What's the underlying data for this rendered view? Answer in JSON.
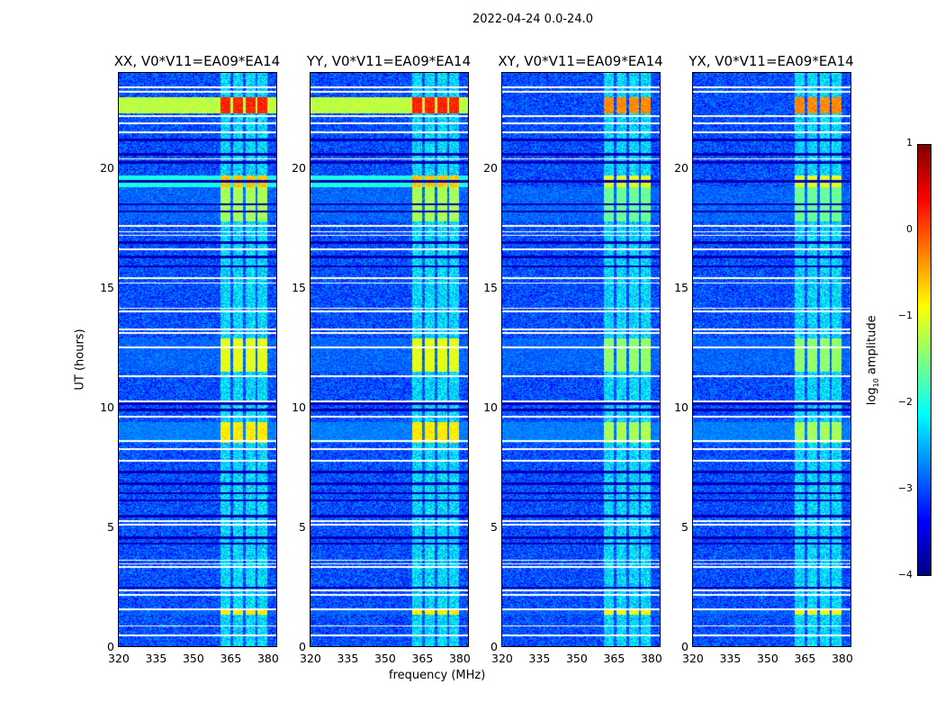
{
  "chart_data": {
    "type": "heatmap",
    "suptitle": "2022-04-24 0.0-24.0",
    "xlabel": "frequency (MHz)",
    "ylabel": "UT (hours)",
    "xlim": [
      320,
      384
    ],
    "ylim": [
      0,
      24
    ],
    "xticks": [
      320,
      335,
      350,
      365,
      380
    ],
    "yticks": [
      0,
      5,
      10,
      15,
      20
    ],
    "panels": [
      {
        "title": "XX, V0*V11=EA09*EA14",
        "pol": "XX"
      },
      {
        "title": "YY, V0*V11=EA09*EA14",
        "pol": "YY"
      },
      {
        "title": "XY, V0*V11=EA09*EA14",
        "pol": "XY"
      },
      {
        "title": "YX, V0*V11=EA09*EA14",
        "pol": "YX"
      }
    ],
    "colorbar": {
      "label_prefix": "log",
      "label_sub": "10",
      "label_suffix": " amplitude",
      "range": [
        -4,
        1
      ],
      "ticks": [
        "1",
        "0",
        "−1",
        "−2",
        "−3",
        "−4"
      ],
      "colormap": "jet"
    },
    "background_log_amplitude": -3.0,
    "rfi_channels_mhz": [
      [
        361.5,
        365.5
      ],
      [
        366.5,
        370.5
      ],
      [
        371.5,
        375.5
      ],
      [
        376.5,
        380.5
      ]
    ],
    "events": [
      {
        "t": [
          22.3,
          23.0
        ],
        "band": 0.2,
        "broad": -1.2,
        "cross_band": -0.3
      },
      {
        "t": [
          19.2,
          19.7
        ],
        "band": -0.6,
        "broad": -2.0,
        "cross_band": -1.0
      },
      {
        "t": [
          17.8,
          19.2
        ],
        "band": -1.3,
        "broad": -3.0,
        "cross_band": -1.6
      },
      {
        "t": [
          11.5,
          12.9
        ],
        "band": -1.0,
        "broad": -3.0,
        "cross_band": -1.4
      },
      {
        "t": [
          8.5,
          9.4
        ],
        "band": -0.8,
        "broad": -2.8,
        "cross_band": -1.3
      },
      {
        "t": [
          1.3,
          1.5
        ],
        "band": -0.8,
        "broad": -3.0,
        "cross_band": -0.9
      }
    ],
    "flagged_hours": [
      0.45,
      0.85,
      1.55,
      2.15,
      2.35,
      3.3,
      3.45,
      3.6,
      5.1,
      5.25,
      7.75,
      8.25,
      8.6,
      9.6,
      10.25,
      11.3,
      12.5,
      13.1,
      13.25,
      14.0,
      14.15,
      15.2,
      15.4,
      16.6,
      17.2,
      17.35,
      17.6,
      20.4,
      21.5,
      21.9,
      22.2,
      23.2,
      23.4
    ],
    "dark_hours": [
      2.45,
      4.3,
      4.55,
      5.45,
      6.1,
      6.4,
      6.8,
      7.3,
      9.9,
      10.15,
      15.9,
      16.3,
      16.9,
      18.2,
      18.5,
      19.45,
      20.25,
      20.6,
      21.2
    ]
  }
}
